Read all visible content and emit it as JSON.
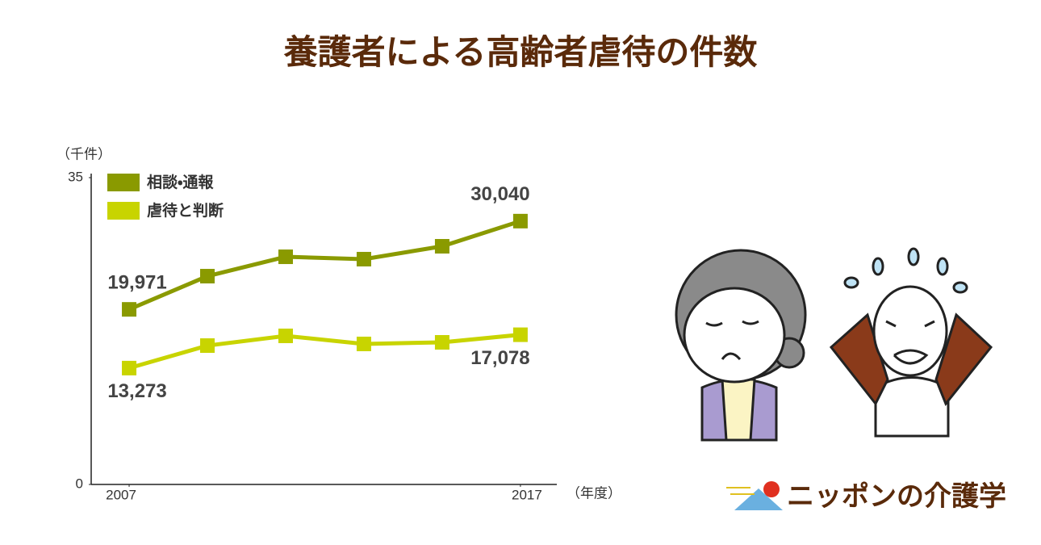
{
  "chart_data": {
    "type": "line",
    "title": "養護者による高齢者虐待の件数",
    "y_unit": "（千件）",
    "x_unit": "（年度）",
    "x": [
      2007,
      2009,
      2011,
      2013,
      2015,
      2017
    ],
    "xlim": [
      2006.03,
      2017.93
    ],
    "xticks": [
      2007,
      2017
    ],
    "ylim": [
      0,
      35
    ],
    "yticks": [
      0,
      35
    ],
    "series": [
      {
        "name": "相談・通報",
        "color": "#8a9a00",
        "values": [
          19.971,
          23.76,
          25.97,
          25.7,
          27.17,
          30.04
        ],
        "value_labels": [
          "19,971",
          null,
          null,
          null,
          null,
          "30,040"
        ]
      },
      {
        "name": "虐待と判断",
        "color": "#c8d400",
        "values": [
          13.273,
          15.84,
          16.95,
          16.03,
          16.21,
          17.078
        ],
        "value_labels": [
          "13,273",
          null,
          null,
          null,
          null,
          "17,078"
        ]
      }
    ]
  },
  "logo": "ニッポンの介護学"
}
